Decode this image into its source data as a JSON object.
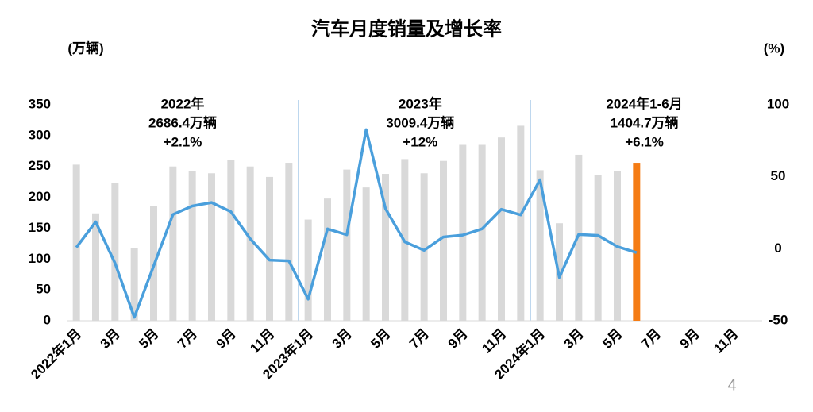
{
  "chart_data": {
    "type": "bar_line",
    "title": "汽车月度销量及增长率",
    "y_label": "(万辆)",
    "y2_label": "(%)",
    "categories": [
      "2022年1月",
      null,
      "3月",
      null,
      "5月",
      null,
      "7月",
      null,
      "9月",
      null,
      "11月",
      null,
      "2023年1月",
      null,
      "3月",
      null,
      "5月",
      null,
      "7月",
      null,
      "9月",
      null,
      "11月",
      null,
      "2024年1月",
      null,
      "3月",
      null,
      "5月",
      null,
      "7月",
      null,
      "9月",
      null,
      "11月",
      null
    ],
    "series": [
      {
        "type": "bar",
        "color": "#d9d9d9",
        "point_colors": [
          null,
          null,
          null,
          null,
          null,
          null,
          null,
          null,
          null,
          null,
          null,
          null,
          null,
          null,
          null,
          null,
          null,
          null,
          null,
          null,
          null,
          null,
          null,
          null,
          null,
          null,
          null,
          null,
          null,
          "#f57c14",
          null,
          null,
          null,
          null,
          null,
          null
        ],
        "values": [
          253,
          174,
          223,
          118,
          186,
          250,
          242,
          239,
          261,
          250,
          233,
          256,
          164,
          198,
          245,
          216,
          238,
          262,
          239,
          259,
          285,
          285,
          297,
          316,
          244,
          158,
          269,
          236,
          242,
          256,
          null,
          null,
          null,
          null,
          null,
          null
        ]
      },
      {
        "type": "line",
        "axis": "y2",
        "color": "#4a9fdc",
        "values": [
          0.9,
          18.7,
          -10,
          -47.6,
          -12,
          23.8,
          29.7,
          32.1,
          25.7,
          6.9,
          -7.9,
          -8.4,
          -35,
          13.8,
          9.7,
          82.7,
          27.9,
          4.8,
          -1.1,
          8.2,
          9.5,
          13.8,
          27.4,
          23.5,
          47.9,
          -19.9,
          9.9,
          9.3,
          1.5,
          -2.7,
          null,
          null,
          null,
          null,
          null,
          null
        ]
      }
    ],
    "ylim": [
      0,
      350
    ],
    "yticks": [
      0,
      50,
      100,
      150,
      200,
      250,
      300,
      350
    ],
    "y2lim": [
      -50,
      100
    ],
    "y2ticks": [
      -50,
      0,
      50,
      100
    ],
    "annotations": [
      {
        "lines": [
          "2022年",
          "2686.4万辆",
          "+2.1%"
        ]
      },
      {
        "lines": [
          "2023年",
          "3009.4万辆",
          "+12%"
        ]
      },
      {
        "lines": [
          "2024年1-6月",
          "1404.7万辆",
          "+6.1%"
        ]
      }
    ],
    "page_number": "4"
  }
}
